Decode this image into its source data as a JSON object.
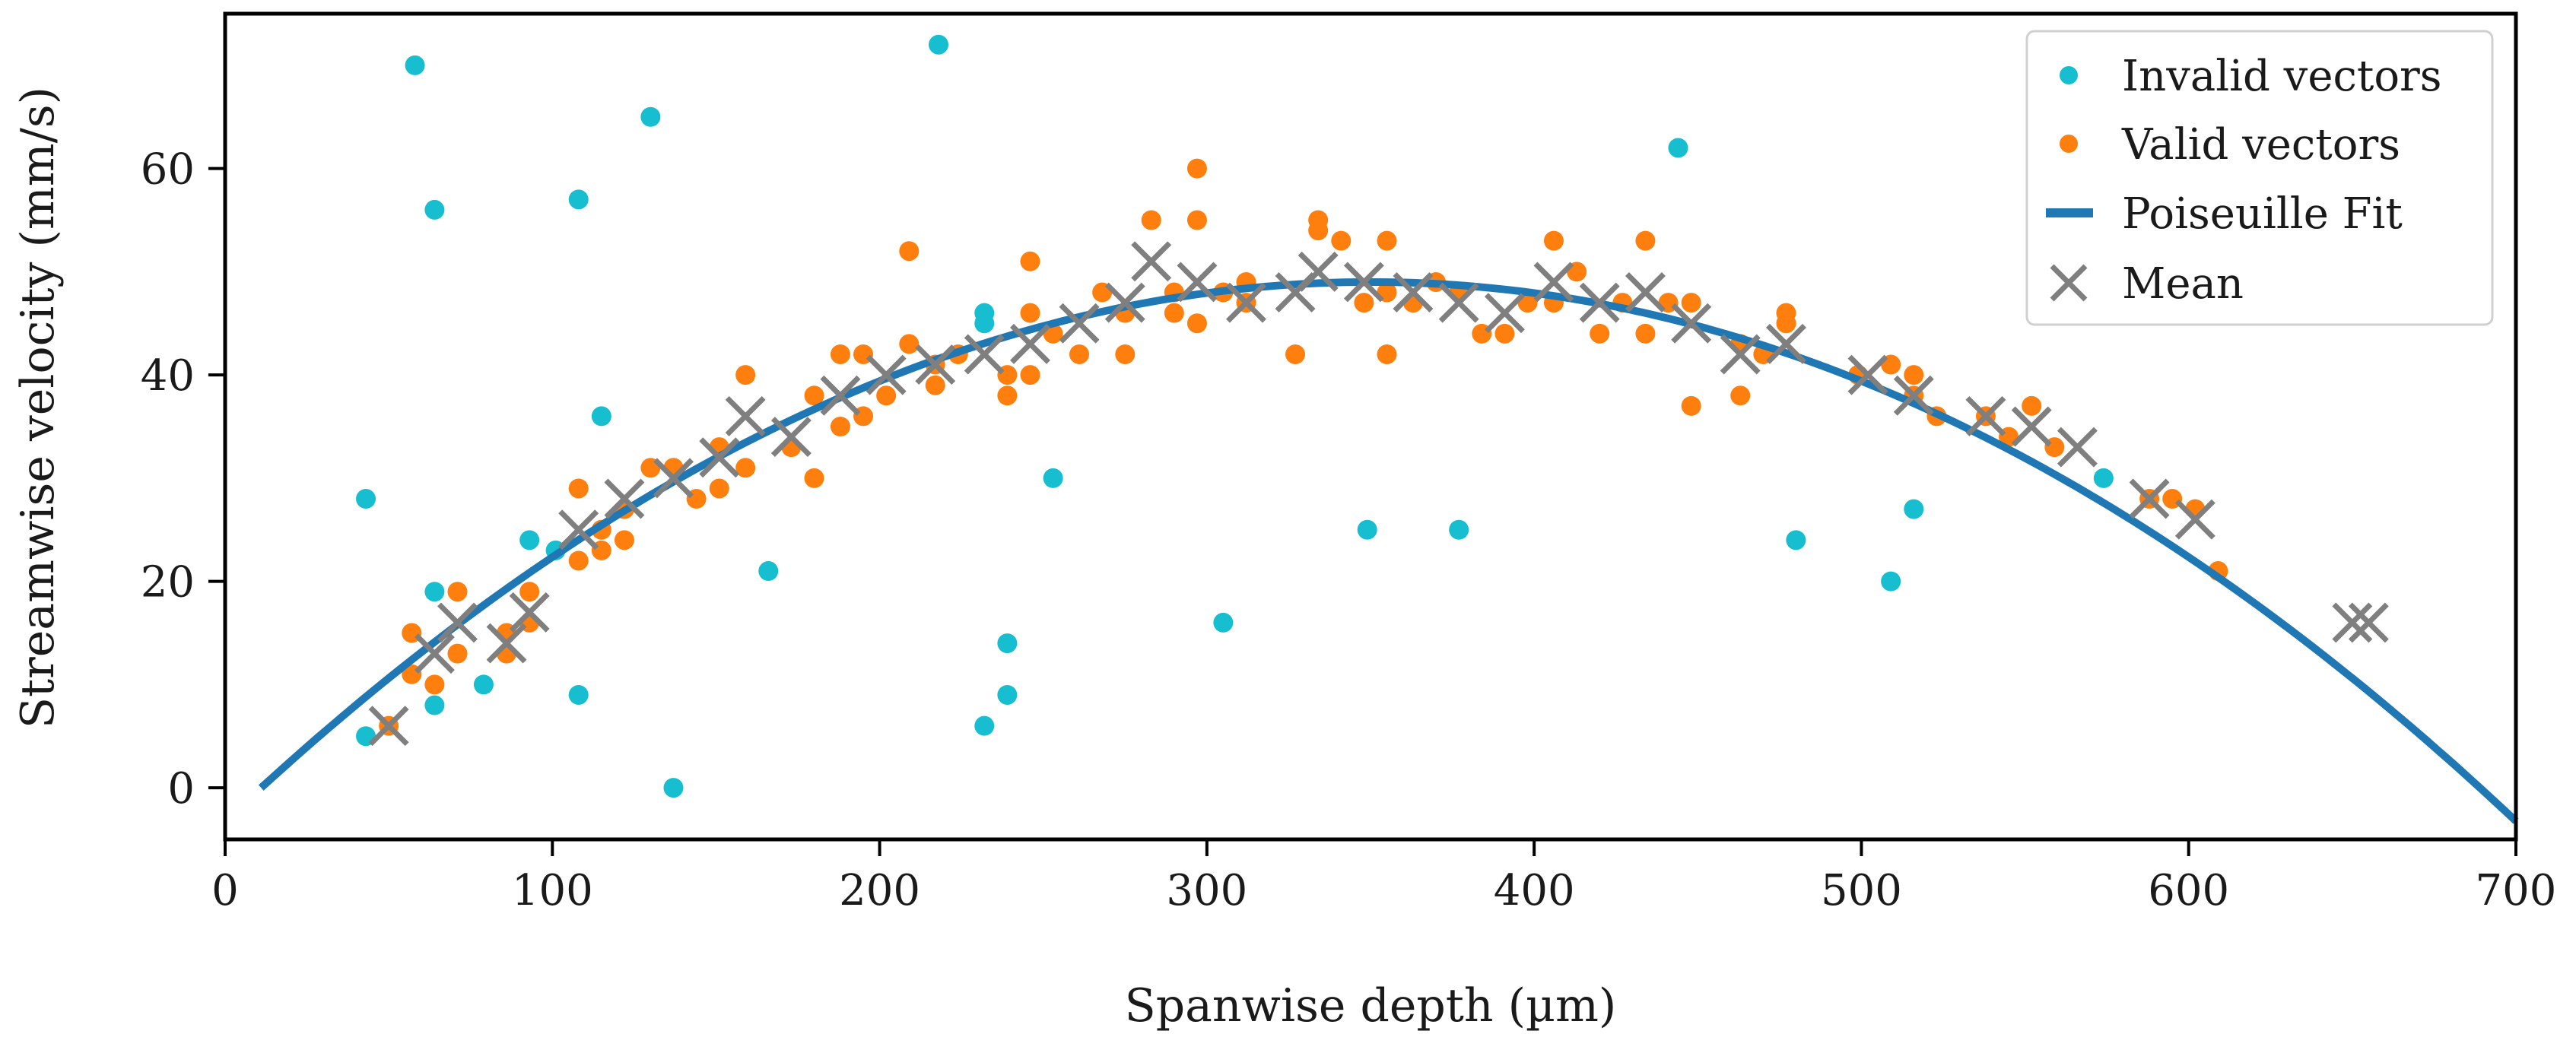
{
  "chart_data": {
    "type": "scatter",
    "title": "",
    "xlabel": "Spanwise depth (µm)",
    "ylabel": "Streamwise velocity (mm/s)",
    "xlim": [
      0,
      700
    ],
    "ylim": [
      -5,
      75
    ],
    "xticks": [
      0,
      100,
      200,
      300,
      400,
      500,
      600,
      700
    ],
    "yticks": [
      0,
      20,
      40,
      60
    ],
    "grid": false,
    "legend_position": "top-right",
    "colors": {
      "invalid": "#17becf",
      "valid": "#ff7f0e",
      "fit": "#1f77b4",
      "mean": "#7f7f7f"
    },
    "series": [
      {
        "name": "Invalid vectors",
        "kind": "points",
        "points": [
          [
            43,
            28
          ],
          [
            43,
            5
          ],
          [
            58,
            70
          ],
          [
            64,
            56
          ],
          [
            64,
            19
          ],
          [
            64,
            8
          ],
          [
            79,
            10
          ],
          [
            93,
            24
          ],
          [
            101,
            23
          ],
          [
            108,
            57
          ],
          [
            108,
            9
          ],
          [
            115,
            36
          ],
          [
            130,
            65
          ],
          [
            137,
            0
          ],
          [
            166,
            21
          ],
          [
            218,
            72
          ],
          [
            232,
            46
          ],
          [
            232,
            45
          ],
          [
            232,
            6
          ],
          [
            239,
            14
          ],
          [
            239,
            9
          ],
          [
            253,
            30
          ],
          [
            305,
            16
          ],
          [
            349,
            25
          ],
          [
            377,
            25
          ],
          [
            444,
            62
          ],
          [
            480,
            24
          ],
          [
            509,
            20
          ],
          [
            516,
            27
          ],
          [
            574,
            30
          ]
        ]
      },
      {
        "name": "Valid vectors",
        "kind": "points",
        "points": [
          [
            50,
            6
          ],
          [
            57,
            15
          ],
          [
            57,
            11
          ],
          [
            64,
            10
          ],
          [
            71,
            13
          ],
          [
            71,
            19
          ],
          [
            86,
            15
          ],
          [
            86,
            13
          ],
          [
            93,
            16
          ],
          [
            93,
            19
          ],
          [
            108,
            29
          ],
          [
            108,
            22
          ],
          [
            115,
            25
          ],
          [
            115,
            23
          ],
          [
            122,
            27
          ],
          [
            122,
            24
          ],
          [
            130,
            31
          ],
          [
            137,
            31
          ],
          [
            144,
            28
          ],
          [
            151,
            33
          ],
          [
            151,
            29
          ],
          [
            159,
            40
          ],
          [
            159,
            31
          ],
          [
            173,
            33
          ],
          [
            180,
            38
          ],
          [
            180,
            30
          ],
          [
            188,
            42
          ],
          [
            188,
            35
          ],
          [
            195,
            42
          ],
          [
            195,
            36
          ],
          [
            202,
            38
          ],
          [
            209,
            52
          ],
          [
            209,
            43
          ],
          [
            217,
            41
          ],
          [
            217,
            39
          ],
          [
            224,
            42
          ],
          [
            239,
            40
          ],
          [
            239,
            38
          ],
          [
            246,
            51
          ],
          [
            246,
            46
          ],
          [
            246,
            40
          ],
          [
            253,
            44
          ],
          [
            261,
            42
          ],
          [
            268,
            48
          ],
          [
            275,
            46
          ],
          [
            275,
            42
          ],
          [
            283,
            55
          ],
          [
            290,
            48
          ],
          [
            290,
            46
          ],
          [
            297,
            60
          ],
          [
            297,
            55
          ],
          [
            297,
            45
          ],
          [
            305,
            48
          ],
          [
            312,
            47
          ],
          [
            312,
            49
          ],
          [
            327,
            42
          ],
          [
            334,
            55
          ],
          [
            334,
            54
          ],
          [
            341,
            53
          ],
          [
            348,
            47
          ],
          [
            355,
            53
          ],
          [
            355,
            48
          ],
          [
            355,
            42
          ],
          [
            363,
            47
          ],
          [
            370,
            49
          ],
          [
            377,
            48
          ],
          [
            384,
            44
          ],
          [
            391,
            44
          ],
          [
            398,
            47
          ],
          [
            406,
            53
          ],
          [
            406,
            47
          ],
          [
            413,
            50
          ],
          [
            420,
            44
          ],
          [
            427,
            47
          ],
          [
            434,
            53
          ],
          [
            434,
            44
          ],
          [
            441,
            47
          ],
          [
            448,
            37
          ],
          [
            448,
            47
          ],
          [
            463,
            43
          ],
          [
            463,
            38
          ],
          [
            470,
            42
          ],
          [
            477,
            46
          ],
          [
            477,
            45
          ],
          [
            499,
            40
          ],
          [
            509,
            41
          ],
          [
            516,
            38
          ],
          [
            516,
            40
          ],
          [
            523,
            36
          ],
          [
            538,
            36
          ],
          [
            545,
            34
          ],
          [
            552,
            37
          ],
          [
            559,
            33
          ],
          [
            588,
            28
          ],
          [
            595,
            28
          ],
          [
            602,
            27
          ],
          [
            609,
            21
          ]
        ]
      },
      {
        "name": "Poiseuille Fit",
        "kind": "curve",
        "model": "parabola",
        "vertex": [
          350,
          49
        ],
        "x_range": [
          11,
          700
        ],
        "zeros": [
          11,
          689
        ]
      },
      {
        "name": "Mean",
        "kind": "points",
        "points": [
          [
            50,
            6
          ],
          [
            64,
            13
          ],
          [
            71,
            16
          ],
          [
            86,
            14
          ],
          [
            93,
            17
          ],
          [
            108,
            25
          ],
          [
            122,
            28
          ],
          [
            137,
            30
          ],
          [
            151,
            32
          ],
          [
            159,
            36
          ],
          [
            173,
            34
          ],
          [
            188,
            38
          ],
          [
            202,
            40
          ],
          [
            217,
            41
          ],
          [
            232,
            42
          ],
          [
            246,
            43
          ],
          [
            261,
            45
          ],
          [
            275,
            47
          ],
          [
            283,
            51
          ],
          [
            297,
            49
          ],
          [
            312,
            47
          ],
          [
            327,
            48
          ],
          [
            334,
            50
          ],
          [
            348,
            49
          ],
          [
            363,
            48
          ],
          [
            377,
            47
          ],
          [
            391,
            46
          ],
          [
            406,
            49
          ],
          [
            420,
            47
          ],
          [
            434,
            48
          ],
          [
            448,
            45
          ],
          [
            463,
            42
          ],
          [
            477,
            43
          ],
          [
            502,
            40
          ],
          [
            516,
            38
          ],
          [
            538,
            36
          ],
          [
            552,
            35
          ],
          [
            566,
            33
          ],
          [
            588,
            28
          ],
          [
            602,
            26
          ],
          [
            650,
            16
          ],
          [
            655,
            16
          ]
        ]
      }
    ]
  }
}
